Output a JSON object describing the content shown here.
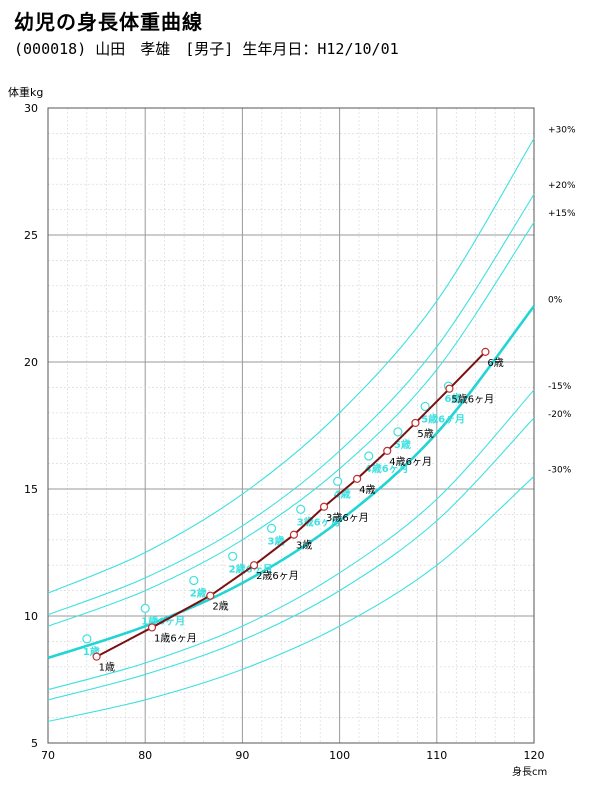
{
  "header": {
    "title": "幼児の身長体重曲線",
    "subtitle": "(000018) 山田　孝雄　[男子] 生年月日：H12/10/01"
  },
  "chart_data": {
    "type": "line",
    "title": "幼児の身長体重曲線",
    "ylabel": "体重kg",
    "xlabel": "身長cm",
    "xlim": [
      70,
      120
    ],
    "ylim": [
      5,
      30
    ],
    "x_ticks": [
      70,
      80,
      90,
      100,
      110,
      120
    ],
    "y_ticks": [
      5,
      10,
      15,
      20,
      25,
      30
    ],
    "grid": true,
    "colors": {
      "reference": "#3fe0e0",
      "median": "#22d4d4",
      "patient": "#7a1010",
      "marker_fill": "#ffffff",
      "reference_marker": "#3fe0e0"
    },
    "reference_curves": [
      {
        "name": "+30%",
        "x": [
          70,
          80,
          90,
          100,
          110,
          120
        ],
        "y": [
          10.9,
          12.5,
          14.8,
          18.0,
          22.4,
          28.8
        ]
      },
      {
        "name": "+20%",
        "x": [
          70,
          80,
          90,
          100,
          110,
          120
        ],
        "y": [
          10.05,
          11.5,
          13.55,
          16.5,
          20.6,
          26.6
        ]
      },
      {
        "name": "+15%",
        "x": [
          70,
          80,
          90,
          100,
          110,
          120
        ],
        "y": [
          9.6,
          11.0,
          13.0,
          15.8,
          19.7,
          25.5
        ]
      },
      {
        "name": "0%",
        "x": [
          70,
          80,
          90,
          100,
          110,
          120
        ],
        "y": [
          8.35,
          9.6,
          11.3,
          13.75,
          17.2,
          22.2
        ]
      },
      {
        "name": "-15%",
        "x": [
          70,
          80,
          90,
          100,
          110,
          120
        ],
        "y": [
          7.1,
          8.15,
          9.6,
          11.7,
          14.6,
          18.9
        ]
      },
      {
        "name": "-20%",
        "x": [
          70,
          80,
          90,
          100,
          110,
          120
        ],
        "y": [
          6.7,
          7.7,
          9.05,
          11.0,
          13.75,
          17.8
        ]
      },
      {
        "name": "-30%",
        "x": [
          70,
          80,
          90,
          100,
          110,
          120
        ],
        "y": [
          5.85,
          6.7,
          7.9,
          9.6,
          12.0,
          15.5
        ]
      }
    ],
    "right_labels": [
      {
        "label": "+30%",
        "y": 29.2
      },
      {
        "label": "+20%",
        "y": 27.0
      },
      {
        "label": "+15%",
        "y": 25.9
      },
      {
        "label": "0%",
        "y": 22.5
      },
      {
        "label": "-15%",
        "y": 19.1
      },
      {
        "label": "-20%",
        "y": 18.0
      },
      {
        "label": "-30%",
        "y": 15.8
      }
    ],
    "reference_points": [
      {
        "x": 74.0,
        "y": 9.1,
        "label": "1歳"
      },
      {
        "x": 80.0,
        "y": 10.3,
        "label": "1歳6ヶ月"
      },
      {
        "x": 85.0,
        "y": 11.4,
        "label": "2歳"
      },
      {
        "x": 89.0,
        "y": 12.35,
        "label": "2歳6ヶ月"
      },
      {
        "x": 93.0,
        "y": 13.45,
        "label": "3歳"
      },
      {
        "x": 96.0,
        "y": 14.2,
        "label": "3歳6ヶ月"
      },
      {
        "x": 99.8,
        "y": 15.3,
        "label": "4歳"
      },
      {
        "x": 103.0,
        "y": 16.3,
        "label": "4歳6ヶ月"
      },
      {
        "x": 106.0,
        "y": 17.25,
        "label": "5歳"
      },
      {
        "x": 108.8,
        "y": 18.25,
        "label": "5歳6ヶ月"
      },
      {
        "x": 111.2,
        "y": 19.05,
        "label": "6歳"
      }
    ],
    "series": [
      {
        "name": "",
        "x": [
          75.0,
          80.7,
          86.7,
          91.2,
          95.3,
          98.4,
          101.8,
          104.9,
          107.8,
          111.3,
          115.0
        ],
        "y": [
          8.4,
          9.55,
          10.8,
          12.0,
          13.2,
          14.3,
          15.4,
          16.5,
          17.6,
          18.95,
          20.4
        ],
        "labels": [
          "1歳",
          "1歳6ヶ月",
          "2歳",
          "2歳6ヶ月",
          "3歳",
          "3歳6ヶ月",
          "4歳",
          "4歳6ヶ月",
          "5歳",
          "5歳6ヶ月",
          "6歳"
        ]
      }
    ]
  }
}
